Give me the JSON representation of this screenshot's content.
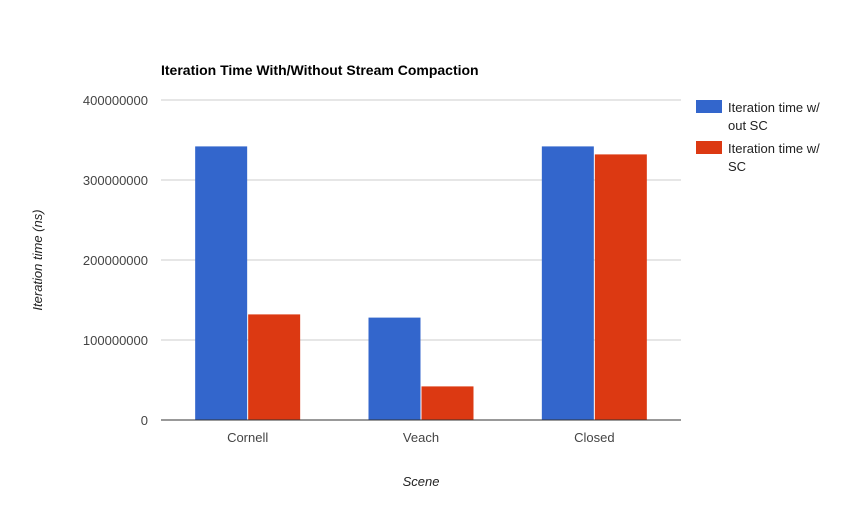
{
  "chart_data": {
    "type": "bar",
    "title": "Iteration Time With/Without Stream Compaction",
    "xlabel": "Scene",
    "ylabel": "Iteration time (ns)",
    "categories": [
      "Cornell",
      "Veach",
      "Closed"
    ],
    "series": [
      {
        "name": "Iteration time w/ out SC",
        "legend_lines": [
          "Iteration time w/",
          "out SC"
        ],
        "color": "#3366cc",
        "values": [
          342000000,
          128000000,
          342000000
        ]
      },
      {
        "name": "Iteration time w/ SC",
        "legend_lines": [
          "Iteration time w/",
          "SC"
        ],
        "color": "#dc3912",
        "values": [
          132000000,
          42000000,
          332000000
        ]
      }
    ],
    "ylim": [
      0,
      400000000
    ],
    "yticks": [
      0,
      100000000,
      200000000,
      300000000,
      400000000
    ],
    "ytick_labels": [
      "0",
      "100000000",
      "200000000",
      "300000000",
      "400000000"
    ],
    "grid": true,
    "legend_position": "right"
  }
}
